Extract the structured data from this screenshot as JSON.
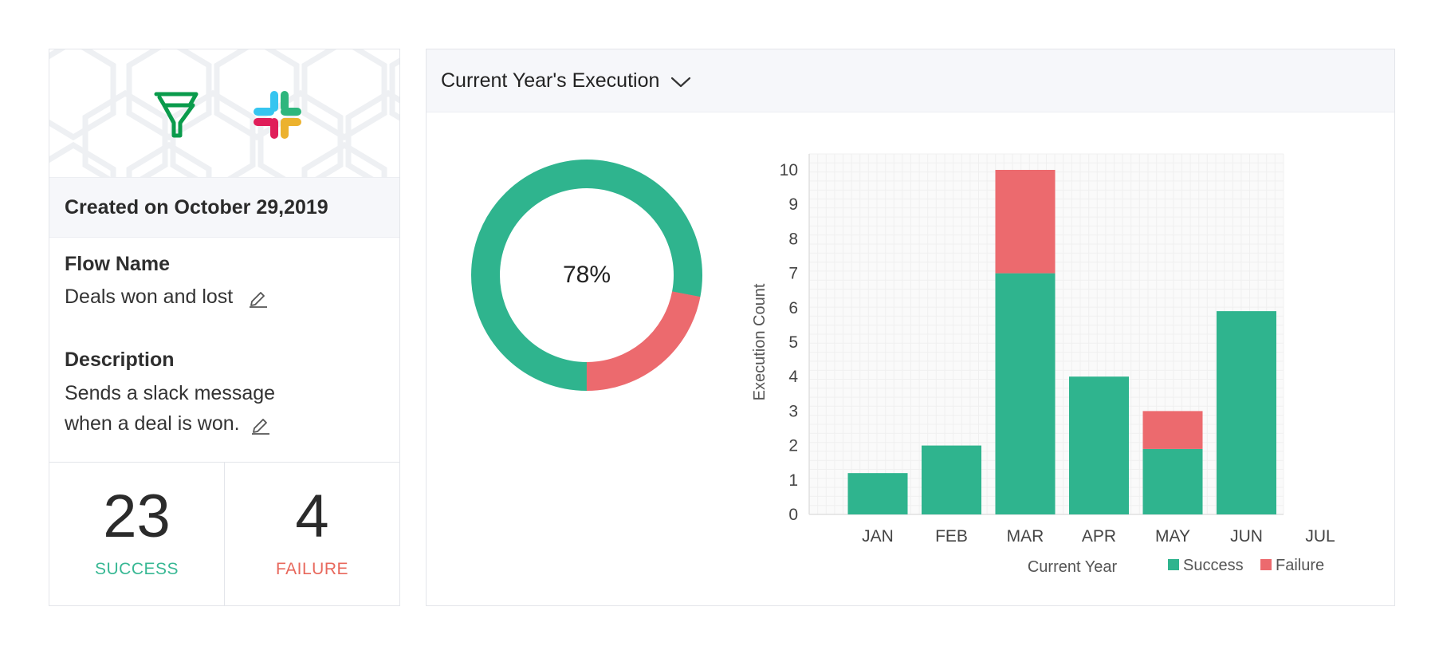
{
  "flow_card": {
    "created_text": "Created on October 29,2019",
    "flow_name_label": "Flow Name",
    "flow_name_value": "Deals won and lost",
    "description_label": "Description",
    "description_line1": "Sends a slack message",
    "description_line2": "when a deal is won.",
    "success_count": "23",
    "success_label": "SUCCESS",
    "failure_count": "4",
    "failure_label": "FAILURE",
    "icons": [
      "zoho-flow-logo-icon",
      "slack-logo-icon",
      "edit-pencil-icon"
    ]
  },
  "execution_panel": {
    "dropdown_label": "Current Year's Execution",
    "dropdown_icon": "chevron-down-icon"
  },
  "colors": {
    "success": "#2fb48e",
    "failure": "#ec6a6e"
  },
  "donut": {
    "success_fraction": 0.78,
    "label": "78%"
  },
  "chart_data": {
    "type": "bar",
    "stacked": true,
    "categories": [
      "JAN",
      "FEB",
      "MAR",
      "APR",
      "MAY",
      "JUN",
      "JUL"
    ],
    "series": [
      {
        "name": "Success",
        "values": [
          1.2,
          2,
          7,
          4,
          1.9,
          5.9,
          0
        ]
      },
      {
        "name": "Failure",
        "values": [
          0,
          0,
          3,
          0,
          1.1,
          0,
          0
        ]
      }
    ],
    "title": "",
    "xlabel": "Current Year",
    "ylabel": "Execution Count",
    "ylim": [
      0,
      10
    ],
    "yticks": [
      "0",
      "1",
      "2",
      "3",
      "4",
      "5",
      "6",
      "7",
      "8",
      "9",
      "10"
    ],
    "grid": true,
    "legend_position": "bottom-right"
  }
}
